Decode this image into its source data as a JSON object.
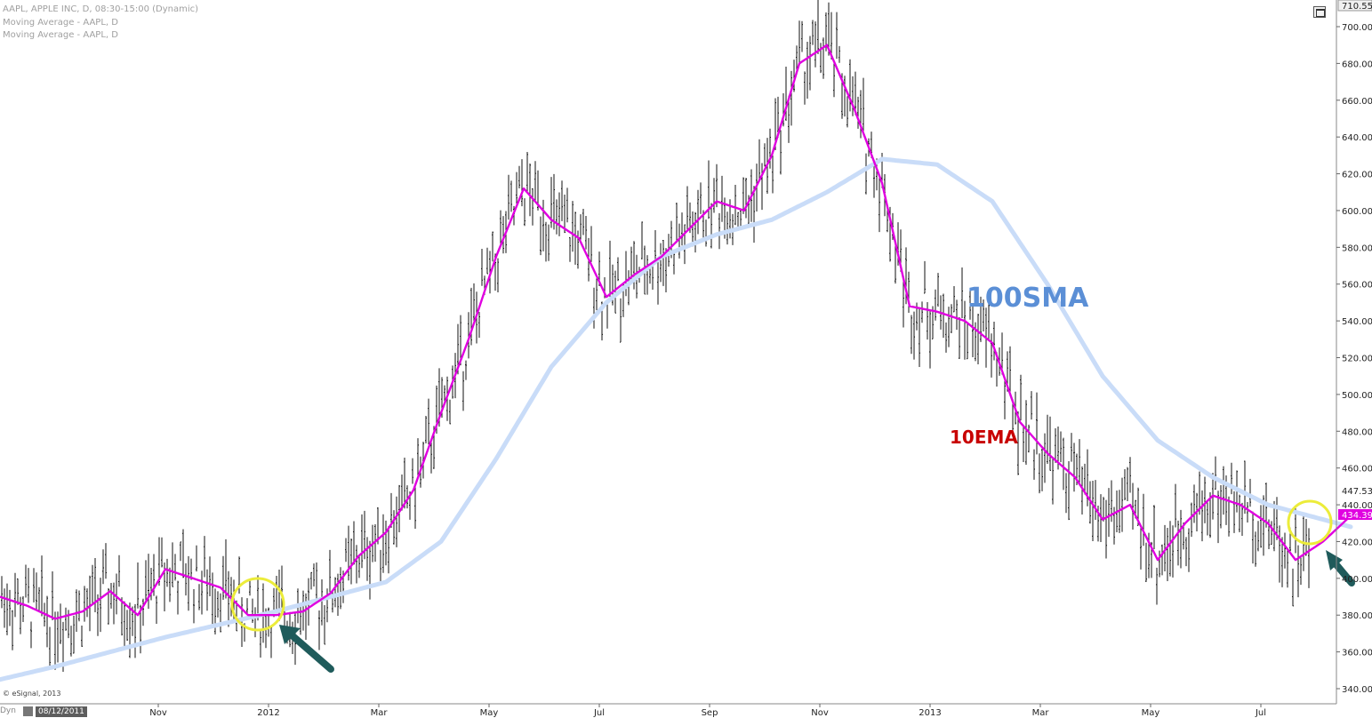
{
  "header": {
    "line1": "AAPL, APPLE INC, D, 08:30-15:00 (Dynamic)",
    "line2": "Moving Average - AAPL, D",
    "line3": "Moving Average - AAPL, D"
  },
  "footer": {
    "copyright": "© eSignal, 2013",
    "dyn_label": "Dyn",
    "start_date": "08/12/2011"
  },
  "colors": {
    "ema": "#e000e0",
    "sma": "#c9dcf8",
    "sma_label": "#5b8fd6",
    "ema_label": "#c80000",
    "circle": "#ecec3a",
    "arrow": "#1f5b5b"
  },
  "chart_data": {
    "type": "line",
    "instrument": "AAPL",
    "ylim": [
      335,
      712
    ],
    "y_ticks": [
      "700.00",
      "680.00",
      "660.00",
      "640.00",
      "620.00",
      "600.00",
      "580.00",
      "560.00",
      "540.00",
      "520.00",
      "500.00",
      "480.00",
      "460.00",
      "440.00",
      "420.00",
      "400.00",
      "380.00",
      "360.00",
      "340.00"
    ],
    "y_tick_values": [
      700,
      680,
      660,
      640,
      620,
      600,
      580,
      560,
      540,
      520,
      500,
      480,
      460,
      440,
      420,
      400,
      380,
      360,
      340
    ],
    "x_ticks": [
      "Nov",
      "2012",
      "Mar",
      "May",
      "Jul",
      "Sep",
      "Nov",
      "2013",
      "Mar",
      "May",
      "Jul"
    ],
    "x_tick_months": [
      3,
      5,
      7,
      9,
      11,
      13,
      15,
      17,
      19,
      21,
      23
    ],
    "price_labels": {
      "high": "710.55",
      "last_close": "447.53",
      "ema_last": "434.39"
    },
    "annotations": {
      "sma_label": "100SMA",
      "ema_label": "10EMA"
    },
    "series": [
      {
        "name": "10EMA",
        "x": [
          0,
          0.5,
          1,
          1.5,
          2,
          2.5,
          3,
          3.5,
          4,
          4.5,
          5,
          5.5,
          6,
          6.5,
          7,
          7.5,
          8,
          8.5,
          9,
          9.5,
          10,
          10.5,
          11,
          11.5,
          12,
          12.5,
          13,
          13.5,
          14,
          14.5,
          15,
          15.5,
          16,
          16.5,
          17,
          17.5,
          18,
          18.5,
          19,
          19.5,
          20,
          20.5,
          21,
          21.5,
          22,
          22.5,
          23,
          23.5,
          24,
          24.5
        ],
        "y": [
          390,
          385,
          378,
          382,
          393,
          380,
          405,
          400,
          395,
          380,
          380,
          382,
          392,
          412,
          425,
          448,
          490,
          530,
          575,
          612,
          595,
          585,
          553,
          565,
          575,
          590,
          605,
          600,
          630,
          680,
          690,
          655,
          615,
          548,
          545,
          540,
          528,
          485,
          468,
          455,
          432,
          440,
          410,
          430,
          445,
          440,
          430,
          410,
          420,
          434
        ]
      },
      {
        "name": "100SMA",
        "x": [
          0,
          1,
          2,
          3,
          4,
          5,
          6,
          7,
          8,
          9,
          10,
          11,
          12,
          13,
          14,
          15,
          16,
          17,
          18,
          19,
          20,
          21,
          22,
          23,
          24,
          24.5
        ],
        "y": [
          345,
          352,
          360,
          368,
          375,
          382,
          390,
          398,
          420,
          465,
          515,
          550,
          575,
          587,
          595,
          610,
          628,
          625,
          605,
          560,
          510,
          475,
          455,
          440,
          432,
          428
        ]
      }
    ]
  }
}
